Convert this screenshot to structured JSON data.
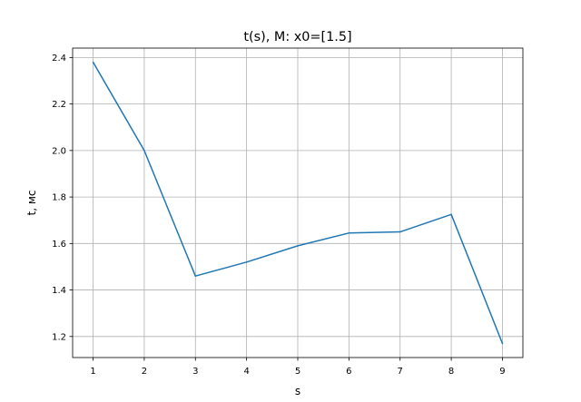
{
  "chart_data": {
    "type": "line",
    "title": "t(s), M: x0=[1.5]",
    "xlabel": "s",
    "ylabel": "t, мс",
    "x": [
      1,
      2,
      3,
      4,
      5,
      6,
      7,
      8,
      9
    ],
    "series": [
      {
        "values": [
          2.38,
          2.0,
          1.46,
          1.52,
          1.59,
          1.645,
          1.65,
          1.725,
          1.17
        ],
        "color": "#1f77b4"
      }
    ],
    "xticks": [
      1,
      2,
      3,
      4,
      5,
      6,
      7,
      8,
      9
    ],
    "xtick_labels": [
      "1",
      "2",
      "3",
      "4",
      "5",
      "6",
      "7",
      "8",
      "9"
    ],
    "yticks": [
      1.2,
      1.4,
      1.6,
      1.8,
      2.0,
      2.2,
      2.4
    ],
    "ytick_labels": [
      "1.2",
      "1.4",
      "1.6",
      "1.8",
      "2.0",
      "2.2",
      "2.4"
    ],
    "xlim": [
      0.6,
      9.4
    ],
    "ylim": [
      1.1095,
      2.4405
    ],
    "grid": true,
    "grid_color": "#b0b0b0",
    "axis_color": "#000000"
  }
}
